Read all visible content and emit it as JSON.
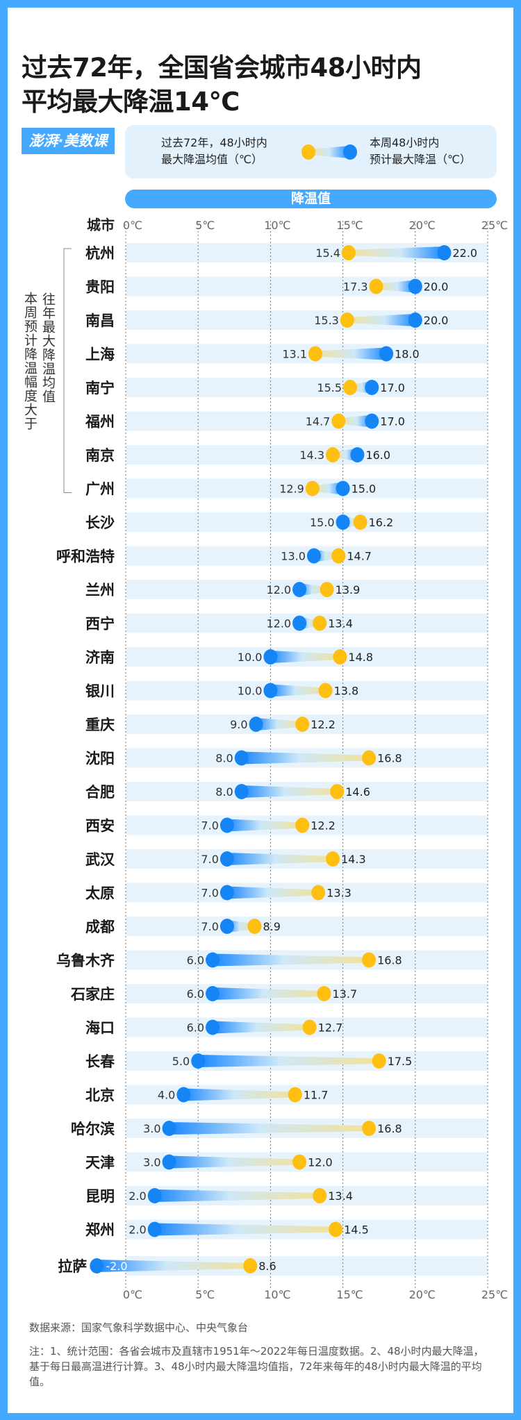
{
  "title": {
    "line1": "过去72年，全国省会城市48小时内",
    "line2": "平均最大降温14℃"
  },
  "logo": "澎湃·美数课",
  "legend": {
    "avg_label_line1": "过去72年，48小时内",
    "avg_label_line2": "最大降温均值（℃）",
    "week_label_line1": "本周48小时内",
    "week_label_line2": "预计最大降温（℃）"
  },
  "colors": {
    "avg": "#ffbf10",
    "week": "#1585f5",
    "accent": "#45aaff",
    "band": "#e6f3fd"
  },
  "header_bar": "降温值",
  "city_header": "城市",
  "bracket_note": {
    "col1": "本周预计降温幅度大于",
    "col2": "往年最大降温均值"
  },
  "footer": {
    "source": "数据来源：国家气象科学数据中心、中央气象台",
    "notes": "注：1、统计范围：各省会城市及直辖市1951年～2022年每日温度数据。2、48小时内最大降温，基于每日最高温进行计算。3、48小时内最大降温均值指，72年来每年的48小时内最大降温的平均值。"
  },
  "chart_data": {
    "type": "dumbbell",
    "xlim": [
      0,
      25
    ],
    "xticks": [
      "0℃",
      "5℃",
      "10℃",
      "15℃",
      "20℃",
      "25℃"
    ],
    "xtick_values": [
      0,
      5,
      10,
      15,
      20,
      25
    ],
    "grid": "vertical dotted",
    "series_keys": {
      "week": "本周48小时内预计最大降温（℃）",
      "avg": "过去72年，48小时内最大降温均值（℃）"
    },
    "rows": [
      {
        "city": "杭州",
        "week": 22.0,
        "avg": 15.4
      },
      {
        "city": "贵阳",
        "week": 20.0,
        "avg": 17.3
      },
      {
        "city": "南昌",
        "week": 20.0,
        "avg": 15.3
      },
      {
        "city": "上海",
        "week": 18.0,
        "avg": 13.1
      },
      {
        "city": "南宁",
        "week": 17.0,
        "avg": 15.5
      },
      {
        "city": "福州",
        "week": 17.0,
        "avg": 14.7
      },
      {
        "city": "南京",
        "week": 16.0,
        "avg": 14.3
      },
      {
        "city": "广州",
        "week": 15.0,
        "avg": 12.9
      },
      {
        "city": "长沙",
        "week": 15.0,
        "avg": 16.2
      },
      {
        "city": "呼和浩特",
        "week": 13.0,
        "avg": 14.7
      },
      {
        "city": "兰州",
        "week": 12.0,
        "avg": 13.9
      },
      {
        "city": "西宁",
        "week": 12.0,
        "avg": 13.4
      },
      {
        "city": "济南",
        "week": 10.0,
        "avg": 14.8
      },
      {
        "city": "银川",
        "week": 10.0,
        "avg": 13.8
      },
      {
        "city": "重庆",
        "week": 9.0,
        "avg": 12.2
      },
      {
        "city": "沈阳",
        "week": 8.0,
        "avg": 16.8
      },
      {
        "city": "合肥",
        "week": 8.0,
        "avg": 14.6
      },
      {
        "city": "西安",
        "week": 7.0,
        "avg": 12.2
      },
      {
        "city": "武汉",
        "week": 7.0,
        "avg": 14.3
      },
      {
        "city": "太原",
        "week": 7.0,
        "avg": 13.3
      },
      {
        "city": "成都",
        "week": 7.0,
        "avg": 8.9
      },
      {
        "city": "乌鲁木齐",
        "week": 6.0,
        "avg": 16.8
      },
      {
        "city": "石家庄",
        "week": 6.0,
        "avg": 13.7
      },
      {
        "city": "海口",
        "week": 6.0,
        "avg": 12.7
      },
      {
        "city": "长春",
        "week": 5.0,
        "avg": 17.5
      },
      {
        "city": "北京",
        "week": 4.0,
        "avg": 11.7
      },
      {
        "city": "哈尔滨",
        "week": 3.0,
        "avg": 16.8
      },
      {
        "city": "天津",
        "week": 3.0,
        "avg": 12.0
      },
      {
        "city": "昆明",
        "week": 2.0,
        "avg": 13.4
      },
      {
        "city": "郑州",
        "week": 2.0,
        "avg": 14.5
      },
      {
        "city": "拉萨",
        "week": -2.0,
        "avg": 8.6
      }
    ],
    "bracketed_rows": 8
  }
}
